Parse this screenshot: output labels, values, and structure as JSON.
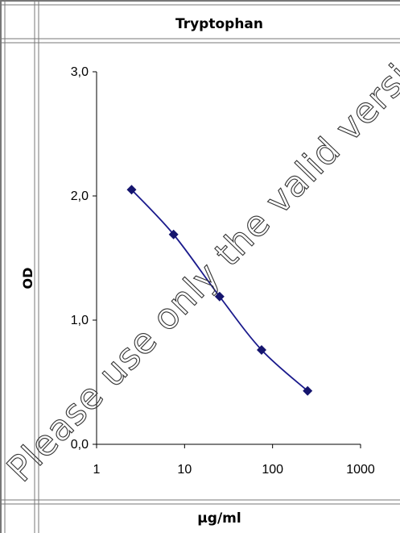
{
  "title": "Tryptophan",
  "ylabel": "OD",
  "xunit": "µg/ml",
  "watermark": "Please use only the valid version",
  "colors": {
    "series": "#1a1a8c",
    "grid": "#888888"
  },
  "chart_data": {
    "type": "line",
    "title": "Tryptophan",
    "xlabel": "µg/ml",
    "ylabel": "OD",
    "xscale": "log",
    "xlim": [
      1,
      1000
    ],
    "ylim": [
      0,
      3
    ],
    "xticks": [
      "1",
      "10",
      "100",
      "1000"
    ],
    "yticks": [
      "0,0",
      "1,0",
      "2,0",
      "3,0"
    ],
    "grid": false,
    "series": [
      {
        "x": [
          2.5,
          7.5,
          25,
          75,
          250
        ],
        "y": [
          2.05,
          1.69,
          1.19,
          0.76,
          0.43
        ]
      }
    ]
  }
}
